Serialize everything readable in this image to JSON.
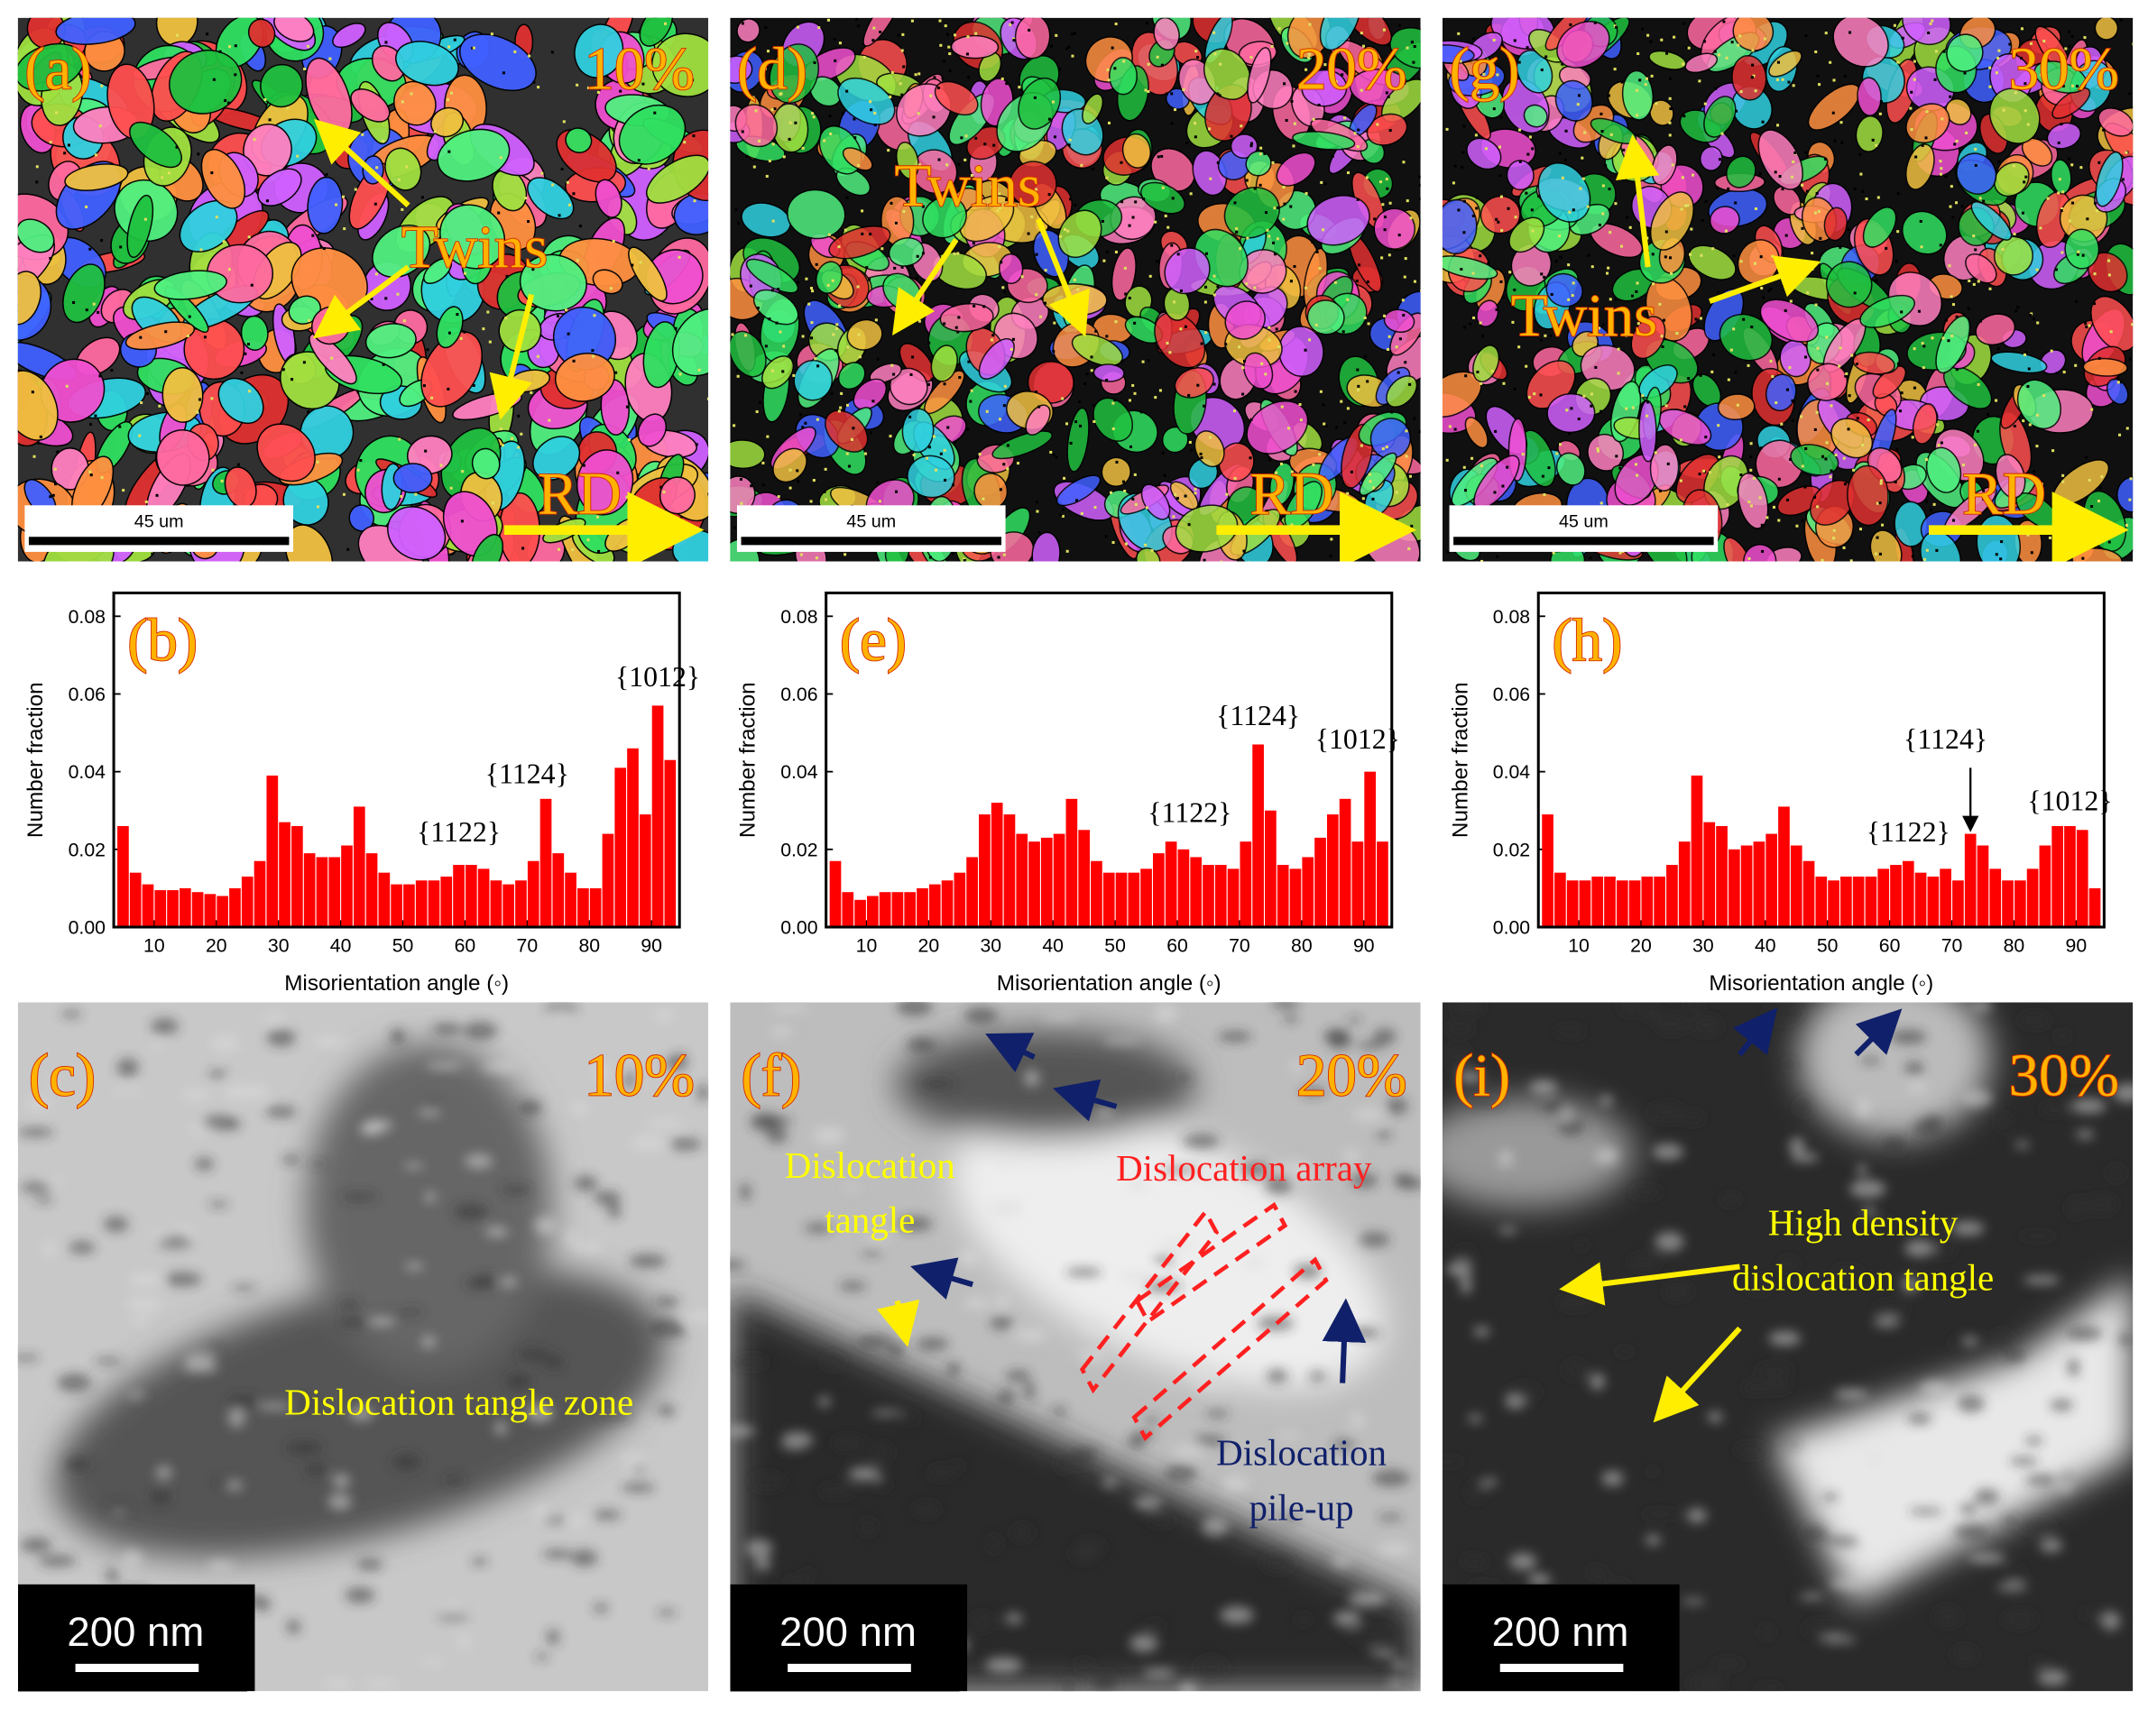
{
  "chart_data": [
    {
      "type": "bar",
      "panel_label": "(b)",
      "xlabel": "Misorientation angle (◦)",
      "ylabel": "Number fraction",
      "color": "#ff0000",
      "x": [
        5,
        7,
        9,
        11,
        13,
        15,
        17,
        19,
        21,
        23,
        25,
        27,
        29,
        31,
        33,
        35,
        37,
        39,
        41,
        43,
        45,
        47,
        49,
        51,
        53,
        55,
        57,
        59,
        61,
        63,
        65,
        67,
        69,
        71,
        73,
        75,
        77,
        79,
        81,
        83,
        85,
        87,
        89,
        91,
        93
      ],
      "values": [
        0.026,
        0.014,
        0.011,
        0.0095,
        0.0095,
        0.01,
        0.009,
        0.0085,
        0.008,
        0.01,
        0.013,
        0.017,
        0.039,
        0.027,
        0.026,
        0.019,
        0.018,
        0.018,
        0.021,
        0.031,
        0.019,
        0.014,
        0.011,
        0.011,
        0.012,
        0.012,
        0.013,
        0.016,
        0.016,
        0.015,
        0.012,
        0.011,
        0.012,
        0.017,
        0.033,
        0.019,
        0.014,
        0.01,
        0.01,
        0.024,
        0.041,
        0.046,
        0.029,
        0.057,
        0.043
      ],
      "xlim": [
        3.5,
        94.5
      ],
      "ylim": [
        0,
        0.086
      ],
      "xticks": [
        10,
        20,
        30,
        40,
        50,
        60,
        70,
        80,
        90
      ],
      "yticks": [
        {
          "value": 0,
          "label": "0.00"
        },
        {
          "value": 0.02,
          "label": "0.02"
        },
        {
          "value": 0.04,
          "label": "0.04"
        },
        {
          "value": 0.06,
          "label": "0.06"
        },
        {
          "value": 0.08,
          "label": "0.08"
        }
      ],
      "annotations": [
        "{1122}",
        "{1124}",
        "{1012}"
      ]
    },
    {
      "type": "bar",
      "panel_label": "(e)",
      "xlabel": "Misorientation angle (◦)",
      "ylabel": "Number fraction",
      "color": "#ff0000",
      "x": [
        5,
        7,
        9,
        11,
        13,
        15,
        17,
        19,
        21,
        23,
        25,
        27,
        29,
        31,
        33,
        35,
        37,
        39,
        41,
        43,
        45,
        47,
        49,
        51,
        53,
        55,
        57,
        59,
        61,
        63,
        65,
        67,
        69,
        71,
        73,
        75,
        77,
        79,
        81,
        83,
        85,
        87,
        89,
        91,
        93
      ],
      "values": [
        0.017,
        0.009,
        0.007,
        0.008,
        0.009,
        0.009,
        0.009,
        0.01,
        0.011,
        0.012,
        0.014,
        0.018,
        0.029,
        0.032,
        0.029,
        0.024,
        0.022,
        0.023,
        0.024,
        0.033,
        0.025,
        0.017,
        0.014,
        0.014,
        0.014,
        0.015,
        0.019,
        0.022,
        0.02,
        0.018,
        0.016,
        0.016,
        0.015,
        0.022,
        0.047,
        0.03,
        0.016,
        0.015,
        0.018,
        0.023,
        0.029,
        0.033,
        0.022,
        0.04,
        0.022
      ],
      "xlim": [
        3.5,
        94.5
      ],
      "ylim": [
        0,
        0.086
      ],
      "xticks": [
        10,
        20,
        30,
        40,
        50,
        60,
        70,
        80,
        90
      ],
      "yticks": [
        {
          "value": 0,
          "label": "0.00"
        },
        {
          "value": 0.02,
          "label": "0.02"
        },
        {
          "value": 0.04,
          "label": "0.04"
        },
        {
          "value": 0.06,
          "label": "0.06"
        },
        {
          "value": 0.08,
          "label": "0.08"
        }
      ],
      "annotations": [
        "{1122}",
        "{1124}",
        "{1012}"
      ]
    },
    {
      "type": "bar",
      "panel_label": "(h)",
      "xlabel": "Misorientation angle (◦)",
      "ylabel": "Number fraction",
      "color": "#ff0000",
      "x": [
        5,
        7,
        9,
        11,
        13,
        15,
        17,
        19,
        21,
        23,
        25,
        27,
        29,
        31,
        33,
        35,
        37,
        39,
        41,
        43,
        45,
        47,
        49,
        51,
        53,
        55,
        57,
        59,
        61,
        63,
        65,
        67,
        69,
        71,
        73,
        75,
        77,
        79,
        81,
        83,
        85,
        87,
        89,
        91,
        93
      ],
      "values": [
        0.029,
        0.014,
        0.012,
        0.012,
        0.013,
        0.013,
        0.012,
        0.012,
        0.013,
        0.013,
        0.016,
        0.022,
        0.039,
        0.027,
        0.026,
        0.02,
        0.021,
        0.022,
        0.024,
        0.031,
        0.021,
        0.017,
        0.013,
        0.012,
        0.013,
        0.013,
        0.013,
        0.015,
        0.016,
        0.017,
        0.014,
        0.013,
        0.015,
        0.012,
        0.024,
        0.021,
        0.015,
        0.012,
        0.012,
        0.015,
        0.021,
        0.026,
        0.026,
        0.025,
        0.01
      ],
      "xlim": [
        3.5,
        94.5
      ],
      "ylim": [
        0,
        0.086
      ],
      "xticks": [
        10,
        20,
        30,
        40,
        50,
        60,
        70,
        80,
        90
      ],
      "yticks": [
        {
          "value": 0,
          "label": "0.00"
        },
        {
          "value": 0.02,
          "label": "0.02"
        },
        {
          "value": 0.04,
          "label": "0.04"
        },
        {
          "value": 0.06,
          "label": "0.06"
        },
        {
          "value": 0.08,
          "label": "0.08"
        }
      ],
      "annotations": [
        "{1122}",
        "{1124}",
        "{1012}"
      ]
    }
  ],
  "ebsd_maps": [
    {
      "label": "(a)",
      "strain": "10%",
      "annotations": [
        "Twins",
        "RD"
      ],
      "scale_bar": "45 um"
    },
    {
      "label": "(d)",
      "strain": "20%",
      "annotations": [
        "Twins",
        "RD"
      ],
      "scale_bar": "45 um"
    },
    {
      "label": "(g)",
      "strain": "30%",
      "annotations": [
        "Twins",
        "RD"
      ],
      "scale_bar": "45 um"
    }
  ],
  "tem_images": [
    {
      "label": "(c)",
      "strain": "10%",
      "scale_bar": "200 nm",
      "annotations": [
        {
          "lines": [
            "Dislocation tangle zone"
          ],
          "color": "#ffff00"
        }
      ]
    },
    {
      "label": "(f)",
      "strain": "20%",
      "scale_bar": "200 nm",
      "annotations": [
        {
          "lines": [
            "Dislocation",
            "tangle"
          ],
          "color": "#ffff00"
        },
        {
          "lines": [
            "Dislocation array"
          ],
          "color": "#ff2020"
        },
        {
          "lines": [
            "Dislocation",
            "pile-up"
          ],
          "color": "#10206a"
        }
      ]
    },
    {
      "label": "(i)",
      "strain": "30%",
      "scale_bar": "200 nm",
      "annotations": [
        {
          "lines": [
            "High density",
            "dislocation tangle"
          ],
          "color": "#ffff00"
        }
      ]
    }
  ]
}
